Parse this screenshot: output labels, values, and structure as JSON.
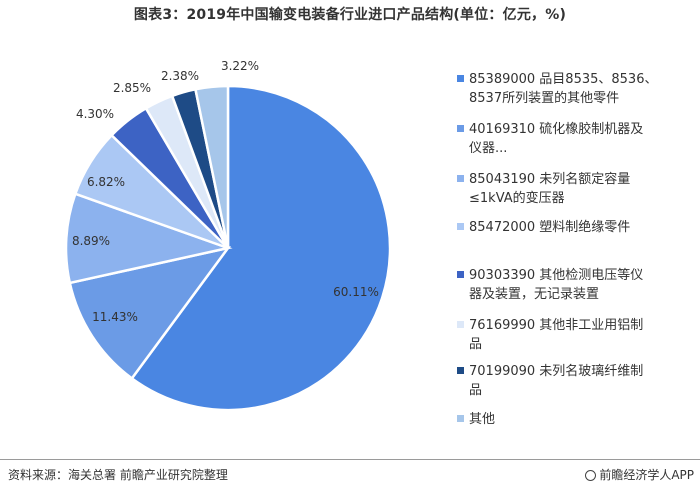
{
  "chart_data": {
    "type": "pie",
    "title": "图表3：2019年中国输变电装备行业进口产品结构(单位：亿元，%)",
    "slices": [
      {
        "label": "85389000 品目8535、8536、8537所列装置的其他零件",
        "value": 60.11,
        "data_label": "60.11%",
        "color": "#4a86e2"
      },
      {
        "label": "40169310 硫化橡胶制机器及仪器...",
        "value": 11.43,
        "data_label": "11.43%",
        "color": "#6b9be6"
      },
      {
        "label": "85043190 未列名额定容量≤1kVA的变压器",
        "value": 8.89,
        "data_label": "8.89%",
        "color": "#8cb2ee"
      },
      {
        "label": "85472000 塑料制绝缘零件",
        "value": 6.82,
        "data_label": "6.82%",
        "color": "#abc8f4"
      },
      {
        "label": "90303390 其他检测电压等仪器及装置，无记录装置",
        "value": 4.3,
        "data_label": "4.30%",
        "color": "#3d63c4"
      },
      {
        "label": "76169990 其他非工业用铝制品",
        "value": 2.85,
        "data_label": "2.85%",
        "color": "#dde8f8"
      },
      {
        "label": "70199090 未列名玻璃纤维制品",
        "value": 2.38,
        "data_label": "2.38%",
        "color": "#1e4b86"
      },
      {
        "label": "其他",
        "value": 3.22,
        "data_label": "3.22%",
        "color": "#a6c6ea"
      }
    ],
    "legend_position": "right"
  },
  "legend_lines": [
    [
      "85389000 品目8535、8536、",
      "8537所列装置的其他零件"
    ],
    [
      "40169310 硫化橡胶制机器及",
      "仪器..."
    ],
    [
      "85043190 未列名额定容量",
      "≤1kVA的变压器"
    ],
    [
      "85472000 塑料制绝缘零件"
    ],
    [
      "90303390 其他检测电压等仪",
      "器及装置，无记录装置"
    ],
    [
      "76169990 其他非工业用铝制",
      "品"
    ],
    [
      "70199090 未列名玻璃纤维制",
      "品"
    ],
    [
      "其他"
    ]
  ],
  "footer": {
    "source": "资料来源：海关总署 前瞻产业研究院整理",
    "brand": "前瞻经济学人APP"
  }
}
